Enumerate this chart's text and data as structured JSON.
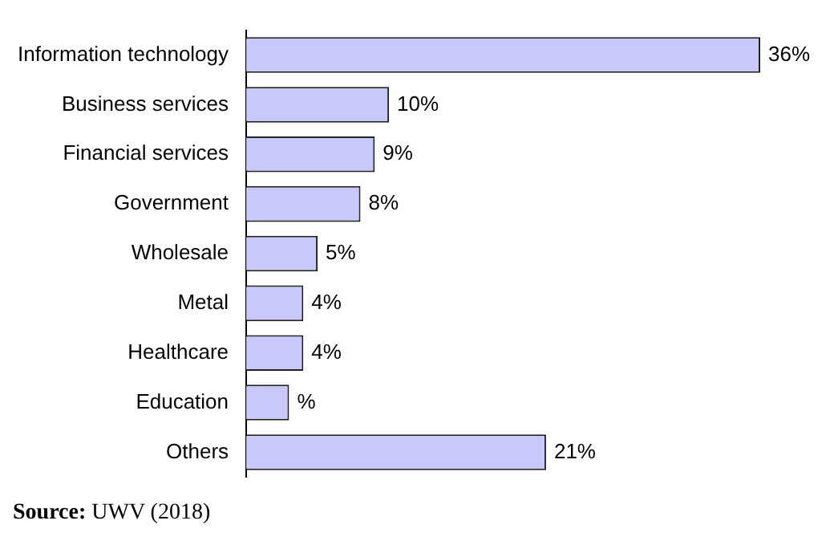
{
  "chart_data": {
    "type": "bar",
    "orientation": "horizontal",
    "categories": [
      "Information technology",
      "Business services",
      "Financial services",
      "Government",
      "Wholesale",
      "Metal",
      "Healthcare",
      "Education",
      "Others"
    ],
    "values": [
      36,
      10,
      9,
      8,
      5,
      4,
      4,
      3,
      21
    ],
    "value_labels": [
      "36%",
      "10%",
      "9%",
      "8%",
      "5%",
      "4%",
      "4%",
      "%",
      "21%"
    ],
    "color": "#c8c8fa",
    "legend": false,
    "annotations": [
      "Source: UWV (2018)"
    ]
  }
}
